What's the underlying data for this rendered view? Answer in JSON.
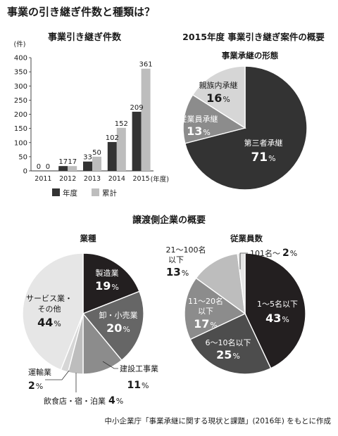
{
  "page": {
    "title": "事業の引き継ぎ件数と種類は？",
    "source": "中小企業庁「事業承継に関する現状と課題」(2016年) をもとに作成"
  },
  "colors": {
    "dark": "#333333",
    "darkest": "#231f20",
    "gray": "#666666",
    "mid": "#8c8c8c",
    "light": "#bdbdbd",
    "lighter": "#d6d6d6",
    "lightest": "#e6e6e6"
  },
  "chart_data": [
    {
      "type": "bar",
      "title": "事業引き継ぎ件数",
      "ylabel": "(件)",
      "xlabel": "(年度)",
      "ylim": [
        0,
        400
      ],
      "yticks": [
        0,
        50,
        100,
        150,
        200,
        250,
        300,
        350,
        400
      ],
      "categories": [
        "2011",
        "2012",
        "2013",
        "2014",
        "2015"
      ],
      "series": [
        {
          "name": "年度",
          "color": "#333333",
          "values": [
            0,
            17,
            33,
            102,
            209
          ]
        },
        {
          "name": "累計",
          "color": "#bdbdbd",
          "values": [
            0,
            17,
            50,
            152,
            361
          ]
        }
      ],
      "legend": "bottom"
    },
    {
      "type": "pie",
      "header": "2015年度 事業引き継ぎ案件の概要",
      "title": "事業承継の形態",
      "slices": [
        {
          "label": "第三者承継",
          "value": 71,
          "display": "71",
          "color": "#333333",
          "text": "light"
        },
        {
          "label": "従業員承継",
          "value": 13,
          "display": "13",
          "color": "#8c8c8c",
          "text": "light"
        },
        {
          "label": "親族内承継",
          "value": 16,
          "display": "16",
          "color": "#d6d6d6",
          "text": "dark"
        }
      ]
    },
    {
      "type": "pie",
      "header": "譲渡側企業の概要",
      "title": "業種",
      "slices": [
        {
          "label": "製造業",
          "value": 19,
          "display": "19",
          "color": "#231f20",
          "text": "light"
        },
        {
          "label": "卸・小売業",
          "value": 20,
          "display": "20",
          "color": "#666666",
          "text": "light"
        },
        {
          "label": "建設工事業",
          "value": 11,
          "display": "11",
          "color": "#8c8c8c",
          "text": "dark"
        },
        {
          "label": "飲食店・宿・泊業",
          "value": 4,
          "display": "4",
          "color": "#bdbdbd",
          "text": "dark"
        },
        {
          "label": "運輸業",
          "value": 2,
          "display": "2",
          "color": "#d6d6d6",
          "text": "dark"
        },
        {
          "label": "サービス業・その他",
          "value": 44,
          "display": "44",
          "color": "#e6e6e6",
          "text": "dark"
        }
      ]
    },
    {
      "type": "pie",
      "title": "従業員数",
      "slices": [
        {
          "label": "1〜5名以下",
          "value": 43,
          "display": "43",
          "color": "#231f20",
          "text": "light"
        },
        {
          "label": "6〜10名以下",
          "value": 25,
          "display": "25",
          "color": "#4d4d4d",
          "text": "light"
        },
        {
          "label": "11〜20名以下",
          "value": 17,
          "display": "17",
          "color": "#8c8c8c",
          "text": "light"
        },
        {
          "label": "21〜100名以下",
          "value": 13,
          "display": "13",
          "color": "#bdbdbd",
          "text": "dark"
        },
        {
          "label": "101名〜",
          "value": 2,
          "display": "2",
          "color": "#e6e6e6",
          "text": "dark"
        }
      ]
    }
  ]
}
